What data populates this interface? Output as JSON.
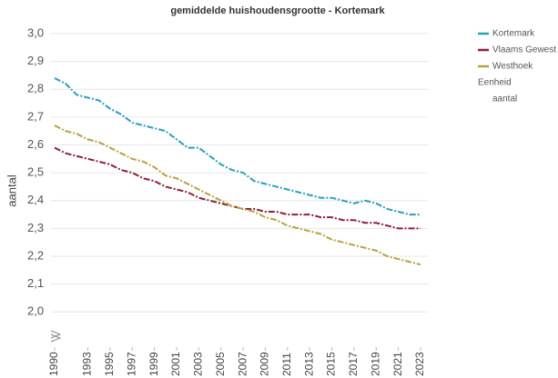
{
  "chart_data": {
    "type": "line",
    "title": "gemiddelde huishoudensgrootte - Kortemark",
    "ylabel": "aantal",
    "x": [
      1990,
      1991,
      1992,
      1993,
      1994,
      1995,
      1996,
      1997,
      1998,
      1999,
      2000,
      2001,
      2002,
      2003,
      2004,
      2005,
      2006,
      2007,
      2008,
      2009,
      2010,
      2011,
      2012,
      2013,
      2014,
      2015,
      2016,
      2017,
      2018,
      2019,
      2020,
      2021,
      2022,
      2023
    ],
    "xlim": [
      1990,
      2023
    ],
    "xticks": [
      1990,
      1993,
      1995,
      1997,
      1999,
      2001,
      2003,
      2005,
      2007,
      2009,
      2011,
      2013,
      2015,
      2017,
      2019,
      2021,
      2023
    ],
    "ylim": [
      1.88,
      3.0
    ],
    "yticks": [
      {
        "value": 2.0,
        "label": "2,0"
      },
      {
        "value": 2.1,
        "label": "2,1"
      },
      {
        "value": 2.2,
        "label": "2,2"
      },
      {
        "value": 2.3,
        "label": "2,3"
      },
      {
        "value": 2.4,
        "label": "2,4"
      },
      {
        "value": 2.5,
        "label": "2,5"
      },
      {
        "value": 2.6,
        "label": "2,6"
      },
      {
        "value": 2.7,
        "label": "2,7"
      },
      {
        "value": 2.8,
        "label": "2,8"
      },
      {
        "value": 2.9,
        "label": "2,9"
      },
      {
        "value": 3.0,
        "label": "3,0"
      }
    ],
    "grid": true,
    "legend_position": "right",
    "legend_unit_title": "Eenheid",
    "legend_unit": "aantal",
    "series": [
      {
        "name": "Kortemark",
        "color": "#2a9fbc",
        "values": [
          2.84,
          2.82,
          2.78,
          2.77,
          2.76,
          2.73,
          2.71,
          2.68,
          2.67,
          2.66,
          2.65,
          2.62,
          2.59,
          2.59,
          2.56,
          2.53,
          2.51,
          2.5,
          2.47,
          2.46,
          2.45,
          2.44,
          2.43,
          2.42,
          2.41,
          2.41,
          2.4,
          2.39,
          2.4,
          2.39,
          2.37,
          2.36,
          2.35,
          2.35
        ]
      },
      {
        "name": "Vlaams Gewest",
        "color": "#8c2038",
        "values": [
          2.59,
          2.57,
          2.56,
          2.55,
          2.54,
          2.53,
          2.51,
          2.5,
          2.48,
          2.47,
          2.45,
          2.44,
          2.43,
          2.41,
          2.4,
          2.39,
          2.38,
          2.37,
          2.37,
          2.36,
          2.36,
          2.35,
          2.35,
          2.35,
          2.34,
          2.34,
          2.33,
          2.33,
          2.32,
          2.32,
          2.31,
          2.3,
          2.3,
          2.3
        ]
      },
      {
        "name": "Westhoek",
        "color": "#b9a13f",
        "values": [
          2.67,
          2.65,
          2.64,
          2.62,
          2.61,
          2.59,
          2.57,
          2.55,
          2.54,
          2.52,
          2.49,
          2.48,
          2.46,
          2.44,
          2.42,
          2.4,
          2.38,
          2.37,
          2.36,
          2.34,
          2.33,
          2.31,
          2.3,
          2.29,
          2.28,
          2.26,
          2.25,
          2.24,
          2.23,
          2.22,
          2.2,
          2.19,
          2.18,
          2.17
        ]
      }
    ]
  }
}
